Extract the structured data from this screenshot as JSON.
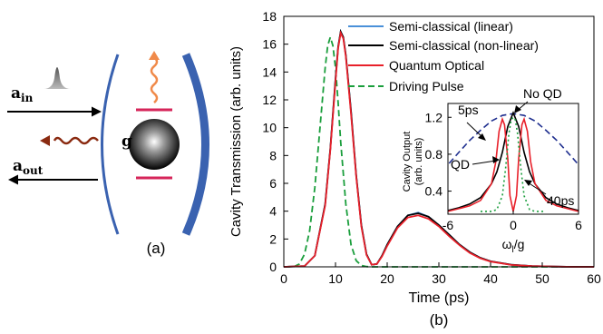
{
  "schematic": {
    "a_in": "a",
    "a_in_sub": "in",
    "a_out": "a",
    "a_out_sub": "out",
    "coupling": "g",
    "panel_label": "(a)"
  },
  "chart_data": [
    {
      "type": "line",
      "panel_label": "(b)",
      "xlabel": "Time (ps)",
      "ylabel": "Cavity Transmission (arb. units)",
      "xlim": [
        0,
        60
      ],
      "ylim": [
        0,
        18
      ],
      "xticks": [
        "0",
        "10",
        "20",
        "30",
        "40",
        "50",
        "60"
      ],
      "yticks": [
        "0",
        "2",
        "4",
        "6",
        "8",
        "10",
        "12",
        "14",
        "16",
        "18"
      ],
      "grid": false,
      "legend_position": "top-right",
      "colors": {
        "linear": "#4a90d9",
        "nonlinear": "#000000",
        "quantum": "#e8202a",
        "drive": "#1a9e3c"
      },
      "series": [
        {
          "name": "Semi-classical (linear)",
          "style": "solid",
          "x": [
            0,
            4,
            6,
            8,
            9,
            10,
            10.5,
            11,
            11.5,
            12,
            13,
            14,
            15,
            16,
            17,
            18,
            19,
            20,
            22,
            24,
            26,
            28,
            30,
            32,
            34,
            36,
            38,
            40,
            44,
            48,
            52,
            56,
            60
          ],
          "y": [
            0,
            0.05,
            0.8,
            4.5,
            8.5,
            13.5,
            15.8,
            16.9,
            16.5,
            15.2,
            11.2,
            6.6,
            3.0,
            0.9,
            0.15,
            0.2,
            0.8,
            1.6,
            2.9,
            3.7,
            3.9,
            3.6,
            3.0,
            2.3,
            1.6,
            1.05,
            0.65,
            0.4,
            0.15,
            0.05,
            0.02,
            0,
            0
          ]
        },
        {
          "name": "Semi-classical (non-linear)",
          "style": "solid",
          "x": [
            0,
            4,
            6,
            8,
            9,
            10,
            10.5,
            11,
            11.5,
            12,
            13,
            14,
            15,
            16,
            17,
            18,
            19,
            20,
            22,
            24,
            26,
            28,
            30,
            32,
            34,
            36,
            38,
            40,
            44,
            48,
            52,
            56,
            60
          ],
          "y": [
            0,
            0.05,
            0.8,
            4.5,
            8.5,
            13.5,
            15.8,
            16.9,
            16.5,
            15.2,
            11.2,
            6.6,
            3.0,
            0.9,
            0.15,
            0.2,
            0.8,
            1.6,
            2.9,
            3.7,
            3.85,
            3.6,
            3.0,
            2.3,
            1.6,
            1.05,
            0.65,
            0.4,
            0.15,
            0.05,
            0.02,
            0,
            0
          ]
        },
        {
          "name": "Quantum Optical",
          "style": "solid",
          "x": [
            0,
            4,
            6,
            8,
            9,
            10,
            10.5,
            11,
            11.5,
            12,
            13,
            14,
            15,
            16,
            17,
            18,
            19,
            20,
            22,
            24,
            26,
            28,
            30,
            32,
            34,
            36,
            38,
            40,
            44,
            48,
            52,
            56,
            60
          ],
          "y": [
            0,
            0.05,
            0.8,
            4.4,
            8.4,
            13.3,
            15.7,
            16.8,
            16.4,
            15.1,
            11.0,
            6.5,
            2.9,
            0.85,
            0.15,
            0.2,
            0.75,
            1.5,
            2.8,
            3.55,
            3.7,
            3.45,
            2.9,
            2.2,
            1.55,
            1.0,
            0.62,
            0.38,
            0.14,
            0.05,
            0.02,
            0,
            0
          ]
        },
        {
          "name": "Driving Pulse",
          "style": "dashed",
          "x": [
            0,
            2,
            3,
            4,
            5,
            6,
            7,
            8,
            8.5,
            9,
            9.5,
            10,
            10.5,
            11,
            12,
            13,
            14,
            15,
            16,
            17,
            18,
            60
          ],
          "y": [
            0,
            0.02,
            0.2,
            0.9,
            2.6,
            5.7,
            10.0,
            14.3,
            15.9,
            16.5,
            15.9,
            14.3,
            11.8,
            9.0,
            4.5,
            1.6,
            0.45,
            0.1,
            0.02,
            0,
            0,
            0
          ]
        }
      ]
    },
    {
      "type": "line",
      "role": "inset",
      "xlabel": "ω",
      "xlabel_sub": "l",
      "xlabel_suffix": "/g",
      "ylabel_line1": "Cavity Output",
      "ylabel_line2": "(arb. units)",
      "xlim": [
        -6,
        6
      ],
      "ylim": [
        0.15,
        1.35
      ],
      "xticks": [
        "-6",
        "0",
        "6"
      ],
      "yticks": [
        "0.4",
        "0.8",
        "1.2"
      ],
      "annotations": [
        "5ps",
        "No QD",
        "QD",
        "40ps"
      ],
      "series": [
        {
          "role": "5ps spectrum",
          "color": "#1f2f8f",
          "style": "dashed",
          "x": [
            -6.5,
            -5,
            -4,
            -3,
            -2,
            -1,
            0,
            1,
            2,
            3,
            4,
            5,
            6.5
          ],
          "y": [
            0.62,
            0.82,
            0.95,
            1.06,
            1.16,
            1.22,
            1.24,
            1.22,
            1.16,
            1.06,
            0.95,
            0.82,
            0.62
          ]
        },
        {
          "role": "No QD",
          "color": "#000000",
          "style": "solid",
          "x": [
            -6,
            -5,
            -4,
            -3,
            -2,
            -1.5,
            -1,
            -0.5,
            0,
            0.5,
            1,
            1.5,
            2,
            3,
            4,
            5,
            6
          ],
          "y": [
            0.19,
            0.22,
            0.26,
            0.33,
            0.48,
            0.61,
            0.82,
            1.1,
            1.25,
            1.1,
            0.82,
            0.61,
            0.48,
            0.33,
            0.26,
            0.22,
            0.19
          ]
        },
        {
          "role": "QD",
          "color": "#e8202a",
          "style": "solid",
          "x": [
            -6,
            -5,
            -4,
            -3,
            -2,
            -1.6,
            -1.3,
            -1.0,
            -0.8,
            -0.5,
            -0.3,
            0,
            0.3,
            0.5,
            0.8,
            1.0,
            1.3,
            1.6,
            2,
            3,
            4,
            5,
            6
          ],
          "y": [
            0.18,
            0.21,
            0.24,
            0.3,
            0.48,
            0.72,
            1.05,
            1.18,
            1.12,
            0.75,
            0.35,
            0.18,
            0.35,
            0.75,
            1.12,
            1.18,
            1.05,
            0.72,
            0.48,
            0.3,
            0.24,
            0.21,
            0.18
          ]
        },
        {
          "role": "40ps spectrum",
          "color": "#1a9e3c",
          "style": "dotted",
          "x": [
            -3,
            -2,
            -1.5,
            -1,
            -0.7,
            -0.4,
            -0.2,
            0,
            0.2,
            0.4,
            0.7,
            1,
            1.5,
            2,
            3
          ],
          "y": [
            0.18,
            0.18,
            0.2,
            0.35,
            0.65,
            1.02,
            1.17,
            1.2,
            1.17,
            1.02,
            0.65,
            0.35,
            0.2,
            0.18,
            0.18
          ]
        }
      ]
    }
  ]
}
